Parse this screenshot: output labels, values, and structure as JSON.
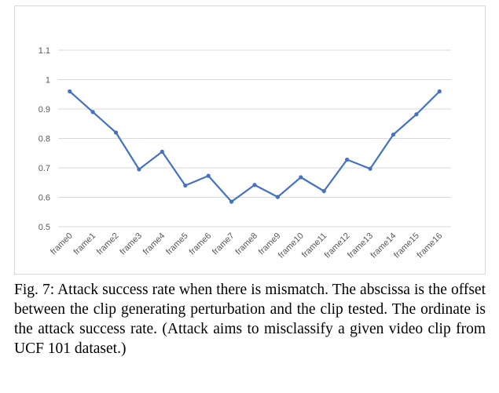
{
  "chart_data": {
    "type": "line",
    "categories": [
      "frame0",
      "frame1",
      "frame2",
      "frame3",
      "frame4",
      "frame5",
      "frame6",
      "frame7",
      "frame8",
      "frame9",
      "frame10",
      "frame11",
      "frame12",
      "frame13",
      "frame14",
      "frame15",
      "frame16"
    ],
    "series": [
      {
        "values": [
          0.96,
          0.89,
          0.82,
          0.695,
          0.755,
          0.64,
          0.673,
          0.585,
          0.642,
          0.601,
          0.668,
          0.621,
          0.728,
          0.697,
          0.813,
          0.882,
          0.96
        ],
        "color": "#4472c4"
      }
    ],
    "yticks": [
      "0.5",
      "0.6",
      "0.7",
      "0.8",
      "0.9",
      "1",
      "1.1"
    ],
    "ylim": [
      0.5,
      1.1
    ],
    "grid": true,
    "legend": "none"
  },
  "caption": "Fig. 7: Attack success rate when there is mismatch. The abscissa is the offset between the clip generating perturbation and the clip tested. The ordinate is the attack success rate. (Attack aims to misclassify a given video clip from UCF 101 dataset.)"
}
